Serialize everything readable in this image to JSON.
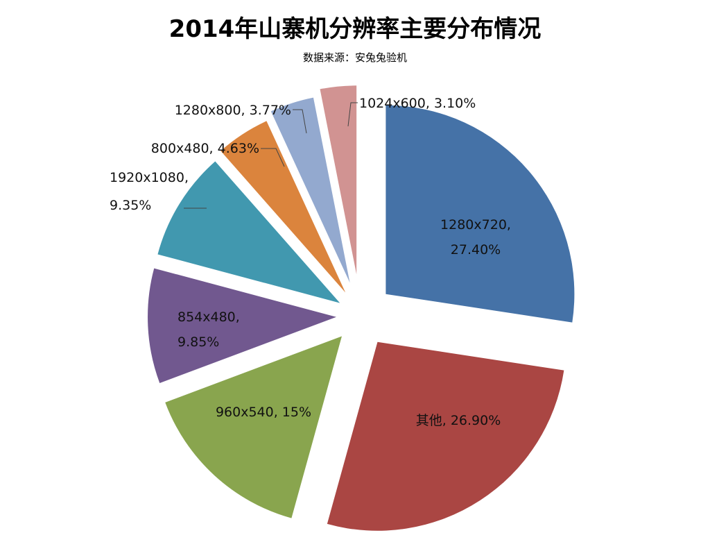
{
  "title": "2014年山寨机分辨率主要分布情况",
  "subtitle": "数据来源：安兔兔验机",
  "chart_data": {
    "type": "pie",
    "title": "2014年山寨机分辨率主要分布情况",
    "subtitle": "数据来源：安兔兔验机",
    "exploded": true,
    "slices": [
      {
        "name": "1280x720",
        "value": 27.4,
        "label_lines": [
          "1280x720,",
          "27.40%"
        ],
        "color": "#4572A7"
      },
      {
        "name": "其他",
        "value": 26.9,
        "label_lines": [
          "其他, 26.90%"
        ],
        "color": "#AA4643"
      },
      {
        "name": "960x540",
        "value": 15,
        "label_lines": [
          "960x540, 15%"
        ],
        "color": "#89A54E"
      },
      {
        "name": "854x480",
        "value": 9.85,
        "label_lines": [
          "854x480,",
          "9.85%"
        ],
        "color": "#71588F"
      },
      {
        "name": "1920x1080",
        "value": 9.35,
        "label_lines": [
          "1920x1080,",
          "9.35%"
        ],
        "color": "#4198AF"
      },
      {
        "name": "800x480",
        "value": 4.63,
        "label_lines": [
          "800x480, 4.63%"
        ],
        "color": "#DB843D"
      },
      {
        "name": "1280x800",
        "value": 3.77,
        "label_lines": [
          "1280x800, 3.77%"
        ],
        "color": "#93A9CF"
      },
      {
        "name": "1024x600",
        "value": 3.1,
        "label_lines": [
          "1024x600, 3.10%"
        ],
        "color": "#D19392"
      }
    ]
  }
}
